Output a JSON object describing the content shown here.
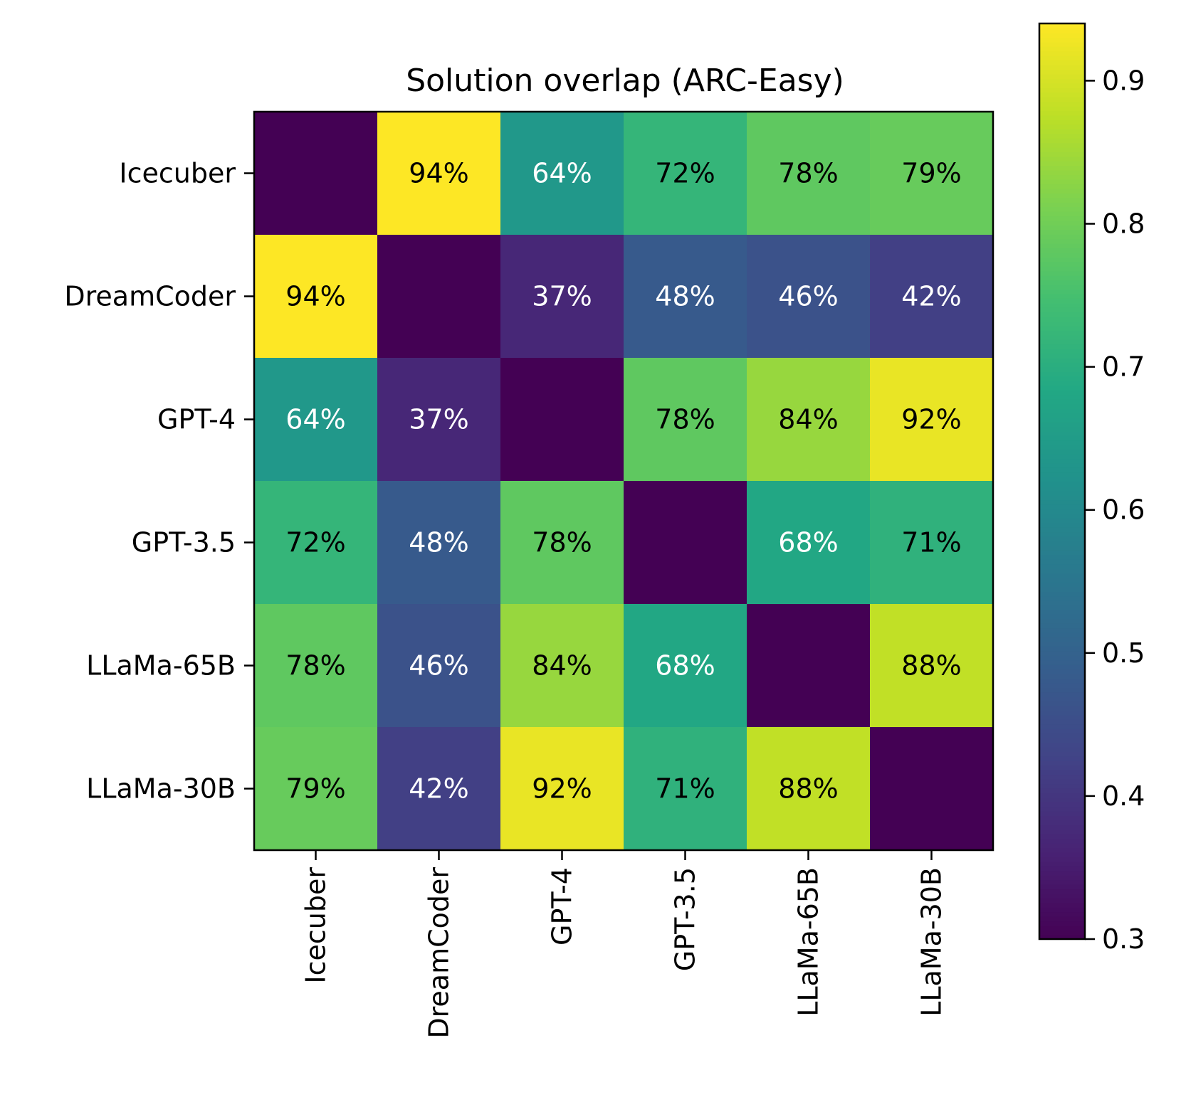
{
  "chart_data": {
    "type": "heatmap",
    "title": "Solution overlap (ARC-Easy)",
    "xlabel": "",
    "ylabel": "",
    "row_labels": [
      "Icecuber",
      "DreamCoder",
      "GPT-4",
      "GPT-3.5",
      "LLaMa-65B",
      "LLaMa-30B"
    ],
    "col_labels": [
      "Icecuber",
      "DreamCoder",
      "GPT-4",
      "GPT-3.5",
      "LLaMa-65B",
      "LLaMa-30B"
    ],
    "values": [
      [
        null,
        0.94,
        0.64,
        0.72,
        0.78,
        0.79
      ],
      [
        0.94,
        null,
        0.37,
        0.48,
        0.46,
        0.42
      ],
      [
        0.64,
        0.37,
        null,
        0.78,
        0.84,
        0.92
      ],
      [
        0.72,
        0.48,
        0.78,
        null,
        0.68,
        0.71
      ],
      [
        0.78,
        0.46,
        0.84,
        0.68,
        null,
        0.88
      ],
      [
        0.79,
        0.42,
        0.92,
        0.71,
        0.88,
        null
      ]
    ],
    "cell_labels": [
      [
        "",
        "94%",
        "64%",
        "72%",
        "78%",
        "79%"
      ],
      [
        "94%",
        "",
        "37%",
        "48%",
        "46%",
        "42%"
      ],
      [
        "64%",
        "37%",
        "",
        "78%",
        "84%",
        "92%"
      ],
      [
        "72%",
        "48%",
        "78%",
        "",
        "68%",
        "71%"
      ],
      [
        "78%",
        "46%",
        "84%",
        "68%",
        "",
        "88%"
      ],
      [
        "79%",
        "42%",
        "92%",
        "71%",
        "88%",
        ""
      ]
    ],
    "diagonal_value": 0.3,
    "colormap": "viridis",
    "colorbar": {
      "range": [
        0.3,
        0.94
      ],
      "ticks": [
        0.3,
        0.4,
        0.5,
        0.6,
        0.7,
        0.8,
        0.9
      ],
      "tick_labels": [
        "0.3",
        "0.4",
        "0.5",
        "0.6",
        "0.7",
        "0.8",
        "0.9"
      ]
    },
    "text_color_threshold": 0.7,
    "text_colors": {
      "dark": "#000000",
      "light": "#ffffff"
    }
  }
}
